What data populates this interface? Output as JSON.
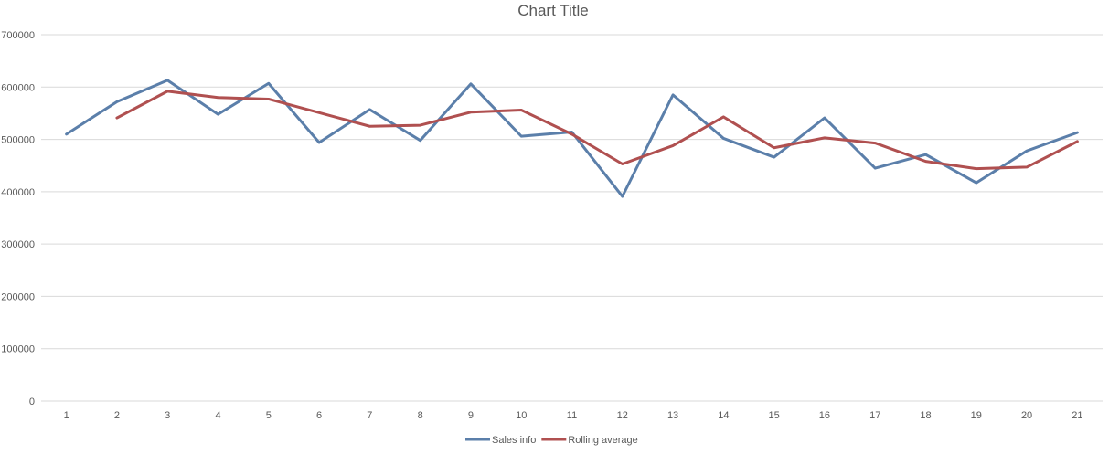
{
  "chart_data": {
    "type": "line",
    "title": "Chart Title",
    "xlabel": "",
    "ylabel": "",
    "categories": [
      "1",
      "2",
      "3",
      "4",
      "5",
      "6",
      "7",
      "8",
      "9",
      "10",
      "11",
      "12",
      "13",
      "14",
      "15",
      "16",
      "17",
      "18",
      "19",
      "20",
      "21"
    ],
    "ylim": [
      0,
      700000
    ],
    "yticks": [
      "0",
      "100000",
      "200000",
      "300000",
      "400000",
      "500000",
      "600000",
      "700000"
    ],
    "grid": true,
    "legend_position": "bottom",
    "series": [
      {
        "name": "Sales info",
        "color": "#5b7faa",
        "values": [
          510000,
          572000,
          613000,
          548000,
          607000,
          494000,
          557000,
          498000,
          606000,
          506000,
          514000,
          391000,
          585000,
          502000,
          466000,
          541000,
          445000,
          471000,
          417000,
          478000,
          513000
        ]
      },
      {
        "name": "Rolling average",
        "color": "#b05050",
        "values": [
          null,
          541000,
          592000,
          580000,
          577000,
          551000,
          525000,
          527000,
          552000,
          556000,
          510000,
          453000,
          488000,
          543000,
          484000,
          503000,
          493000,
          458000,
          444000,
          447000,
          496000
        ]
      }
    ]
  }
}
